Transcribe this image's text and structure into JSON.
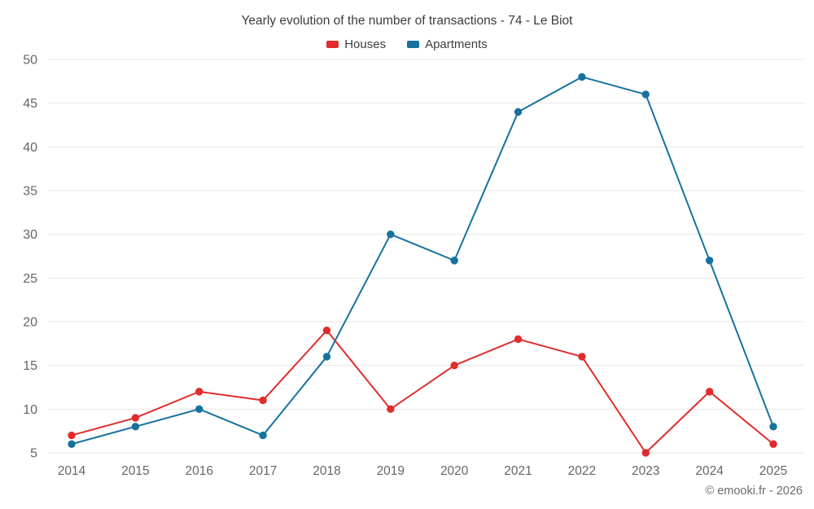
{
  "footer": "© emooki.fr - 2026",
  "chart_data": {
    "type": "line",
    "title": "Yearly evolution of the number of transactions - 74 - Le Biot",
    "x": [
      2014,
      2015,
      2016,
      2017,
      2018,
      2019,
      2020,
      2021,
      2022,
      2023,
      2024,
      2025
    ],
    "series": [
      {
        "name": "Houses",
        "color": "#e02c2c",
        "values": [
          7,
          9,
          12,
          11,
          19,
          10,
          15,
          18,
          16,
          5,
          12,
          6
        ]
      },
      {
        "name": "Apartments",
        "color": "#16729e",
        "values": [
          6,
          8,
          10,
          7,
          16,
          30,
          27,
          44,
          48,
          46,
          27,
          8
        ]
      }
    ],
    "xlabel": "",
    "ylabel": "",
    "ylim": [
      5,
      50
    ],
    "yticks": [
      5,
      10,
      15,
      20,
      25,
      30,
      35,
      40,
      45,
      50
    ],
    "grid": "horizontal",
    "grid_color": "#e6e6e6",
    "tick_label_color": "#666666",
    "legend_position": "top"
  }
}
